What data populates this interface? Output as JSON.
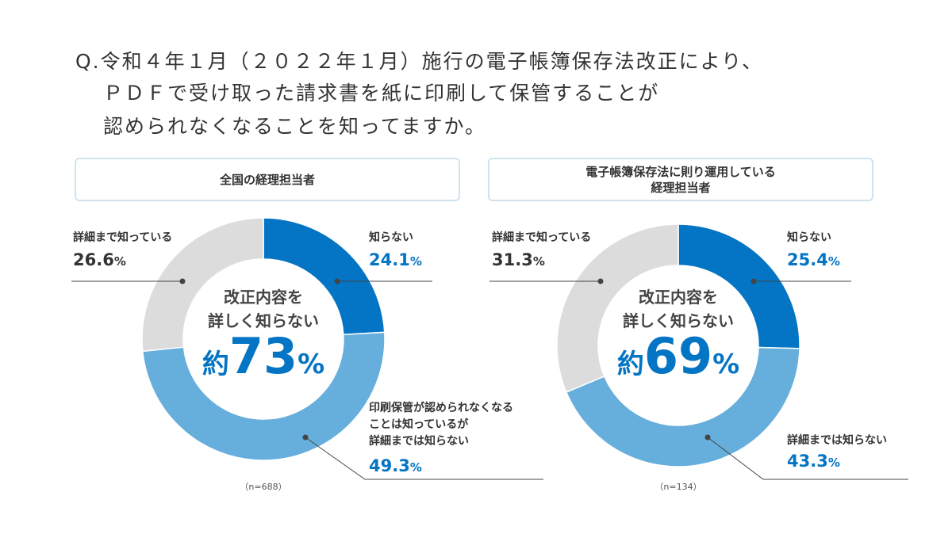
{
  "question": {
    "lines": [
      "Q.令和４年１月（２０２２年１月）施行の電子帳簿保存法改正により、",
      "ＰＤＦで受け取った請求書を紙に印刷して保管することが",
      "認められなくなることを知ってますか。"
    ]
  },
  "colors": {
    "not_know": "#0474c4",
    "not_detail": "#66aedc",
    "know_detail": "#dcdcdc",
    "accent_text": "#0474c4"
  },
  "chart_data": [
    {
      "type": "pie",
      "title": "全国の経理担当者",
      "n_label": "（n=688）",
      "center": {
        "line1": "改正内容を",
        "line2": "詳しく知らない",
        "prefix": "約",
        "value": "73",
        "unit": "%"
      },
      "slices": [
        {
          "label": "知らない",
          "value": 24.1,
          "value_label": "24.1",
          "color": "#0474c4"
        },
        {
          "label": "印刷保管が認められなくなることは知っているが詳細までは知らない",
          "label_lines": [
            "印刷保管が認められなくなる",
            "ことは知っているが",
            "詳細までは知らない"
          ],
          "value": 49.3,
          "value_label": "49.3",
          "color": "#66aedc"
        },
        {
          "label": "詳細まで知っている",
          "value": 26.6,
          "value_label": "26.6",
          "color": "#dcdcdc"
        }
      ]
    },
    {
      "type": "pie",
      "title": "電子帳簿保存法に則り運用している経理担当者",
      "title_lines": [
        "電子帳簿保存法に則り運用している",
        "経理担当者"
      ],
      "n_label": "（n=134）",
      "center": {
        "line1": "改正内容を",
        "line2": "詳しく知らない",
        "prefix": "約",
        "value": "69",
        "unit": "%"
      },
      "slices": [
        {
          "label": "知らない",
          "value": 25.4,
          "value_label": "25.4",
          "color": "#0474c4"
        },
        {
          "label": "詳細までは知らない",
          "label_lines": [
            "詳細までは知らない"
          ],
          "value": 43.3,
          "value_label": "43.3",
          "color": "#66aedc"
        },
        {
          "label": "詳細まで知っている",
          "value": 31.3,
          "value_label": "31.3",
          "color": "#dcdcdc"
        }
      ]
    }
  ],
  "percent_sign": "%"
}
